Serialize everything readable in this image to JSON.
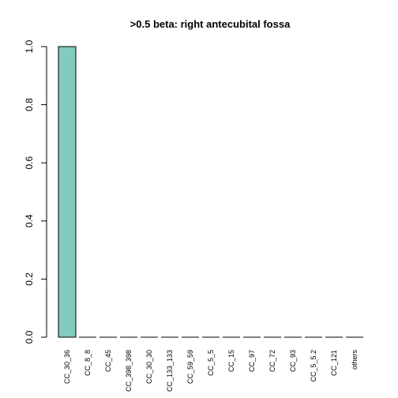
{
  "chart_data": {
    "type": "bar",
    "title": ">0.5 beta:  right antecubital fossa",
    "xlabel": "",
    "ylabel": "",
    "ylim": [
      0,
      1
    ],
    "yticks": [
      "0.0",
      "0.2",
      "0.4",
      "0.6",
      "0.8",
      "1.0"
    ],
    "ytick_values": [
      0,
      0.2,
      0.4,
      0.6,
      0.8,
      1.0
    ],
    "categories": [
      "CC_30_36",
      "CC_8_8",
      "CC_45",
      "CC_398_398",
      "CC_30_30",
      "CC_133_133",
      "CC_59_59",
      "CC_5_5",
      "CC_15",
      "CC_97",
      "CC_72",
      "CC_93",
      "CC_5_5.2",
      "CC_121",
      "others"
    ],
    "values": [
      1.0,
      0,
      0,
      0,
      0,
      0,
      0,
      0,
      0,
      0,
      0,
      0,
      0,
      0,
      0
    ],
    "bar_color": "#82cbbd",
    "bar_stroke": "#000000",
    "grid": false
  }
}
